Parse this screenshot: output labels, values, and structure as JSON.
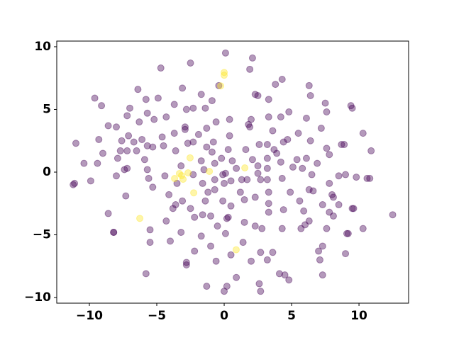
{
  "chart_data": {
    "type": "scatter",
    "xlim": [
      -12.42,
      13.68
    ],
    "ylim": [
      -10.45,
      10.45
    ],
    "xticks": [
      {
        "value": -10,
        "label": "−10"
      },
      {
        "value": -5,
        "label": "−5"
      },
      0,
      5,
      10
    ],
    "yticks": [
      {
        "value": -10,
        "label": "−10"
      },
      {
        "value": -5,
        "label": "−5"
      },
      0,
      5,
      10
    ],
    "grid": false,
    "series": [
      {
        "color": "#440154",
        "x": [
          0.1,
          2.1,
          -2.5,
          -4.7,
          1.9,
          4.3,
          3.8,
          6.3,
          -0.4,
          -6.4,
          -3.1,
          2.3,
          2.5,
          6.4,
          -1.7,
          -9.6,
          -4.9,
          -5.8,
          3.3,
          -0.9,
          -9.1,
          7.5,
          -3.7,
          9.4,
          9.5,
          -7.0,
          -2.8,
          -2.3,
          -1.4,
          -5.7,
          -7.2,
          4.8,
          7.6,
          3.3,
          4.2,
          -5.2,
          -4.3,
          0.4,
          2.0,
          6.1,
          -0.6,
          1.8,
          1.9,
          -8.6,
          -8.0,
          -6.3,
          -2.9,
          -2.9,
          -1.3,
          3.6,
          -3.7,
          -7.1,
          -4.6,
          5.5,
          7.2,
          10.3,
          -1.9,
          0.4,
          -9.3,
          -6.1,
          -7.6,
          -6.7,
          -2.7,
          -2.3,
          -0.8,
          4.4,
          4.7,
          6.4,
          8.7,
          8.9,
          -11.0,
          2.6,
          3.2,
          -5.7,
          -4.5,
          -1.3,
          1.6,
          -5.3,
          -7.2,
          7.6,
          10.9,
          -9.0,
          -7.7,
          -6.5,
          -3.6,
          -0.9,
          0.3,
          3.7,
          3.9,
          7.8,
          -5.9,
          -0.2,
          0.6,
          3.2,
          2.1,
          5.4,
          6.1,
          4.2,
          -10.4,
          -9.4,
          -7.9,
          -1.7,
          -0.7,
          2.5,
          6.9,
          -7.2,
          -7.4,
          -3.2,
          0.9,
          3.2,
          5.1,
          5.8,
          -5.7,
          -1.5,
          0.1,
          -0.1,
          2.5,
          6.5,
          8.5,
          9.0,
          9.8,
          10.6,
          10.8,
          -8.0,
          -4.4,
          -2.3,
          1.7,
          2.7,
          3.2,
          4.3,
          -9.9,
          -5.6,
          1.3,
          -0.7,
          0.5,
          0,
          -3.5,
          -1.6,
          -11.2,
          -11.1,
          7.8,
          -5.3,
          6.3,
          6.6,
          8.0,
          8.1,
          -1.2,
          -7.3,
          -4.1,
          -0.7,
          1.2,
          2.3,
          3.3,
          4.9,
          -3.1,
          -1.4,
          -0.1,
          1.5,
          -3.6,
          5.6,
          7.3,
          8.5,
          0.5,
          3.3,
          -3.8,
          -2.5,
          9.5,
          9.6,
          4.4,
          5.9,
          -8.6,
          7.8,
          -1.6,
          -1.0,
          0.3,
          0.2,
          3.3,
          8.1,
          12.5,
          -2.2,
          -4.3,
          1.5,
          6.3,
          2.3,
          -0.5,
          6.0,
          5.7,
          4.3,
          2.8,
          7.6,
          10.3,
          -8.2,
          -8.2,
          9.1,
          9.2,
          -5.5,
          -3.2,
          -1.7,
          0.1,
          -4.0,
          -5.5,
          1.4,
          -1.0,
          7.3,
          -2.2,
          2.7,
          7.0,
          3.6,
          9.0,
          0.5,
          3.2,
          7.1,
          -2.8,
          -2.8,
          -0.6,
          2.0,
          -5.8,
          4.1,
          4.5,
          7.3,
          0.9,
          4.8,
          2.6,
          -1.3,
          0.2,
          0,
          2.7
        ],
        "values": [
          9.5,
          9.1,
          8.7,
          8.3,
          8.2,
          7.4,
          7.0,
          6.9,
          6.9,
          6.6,
          6.7,
          6.2,
          6.1,
          6.1,
          6.2,
          5.9,
          5.9,
          5.8,
          5.8,
          5.7,
          5.3,
          5.5,
          5.4,
          5.3,
          5.1,
          5.1,
          5.0,
          5.1,
          5.1,
          4.7,
          4.5,
          4.8,
          4.8,
          4.4,
          4.4,
          4.2,
          4.4,
          4.2,
          4.2,
          4.3,
          4.0,
          3.8,
          3.6,
          3.7,
          3.6,
          4.0,
          3.6,
          3.4,
          3.5,
          3.3,
          3.1,
          2.9,
          2.8,
          3.1,
          3.5,
          3.1,
          3.0,
          2.9,
          2.6,
          2.6,
          2.5,
          2.4,
          2.3,
          2.4,
          2.4,
          2.4,
          2.6,
          2.5,
          2.2,
          2.2,
          2.3,
          2.2,
          2.2,
          2.1,
          2.1,
          2.0,
          1.8,
          2.0,
          1.7,
          1.9,
          1.7,
          1.5,
          1.7,
          1.7,
          1.7,
          1.6,
          1.8,
          1.8,
          1.5,
          1.4,
          1.0,
          1.1,
          0.9,
          1.1,
          1.0,
          1.0,
          1.1,
          0.8,
          0.7,
          0.7,
          1.1,
          0.9,
          0.7,
          0.5,
          0.7,
          0.3,
          0.2,
          0.5,
          0.3,
          0.3,
          0.4,
          0.3,
          0.2,
          0.2,
          -0.1,
          -0.2,
          -0.1,
          -0.2,
          -0.3,
          -0.2,
          -0.4,
          -0.5,
          -0.5,
          -0.3,
          -0.3,
          -0.2,
          -0.6,
          -0.6,
          -0.6,
          -0.5,
          -0.7,
          -0.5,
          -0.6,
          -0.6,
          -0.7,
          -0.9,
          -0.9,
          -0.9,
          -1.0,
          -0.9,
          -0.9,
          -1.2,
          -1.4,
          -1.5,
          -1.8,
          -2.0,
          -1.6,
          -1.9,
          -1.8,
          -1.4,
          -1.6,
          -2.0,
          -1.6,
          -1.6,
          -2.3,
          -2.3,
          -2.3,
          -2.2,
          -2.6,
          -2.3,
          -2.6,
          -2.6,
          -2.7,
          -2.5,
          -2.9,
          -2.9,
          -2.9,
          -2.9,
          -3.0,
          -3.1,
          -3.3,
          -3.2,
          -3.4,
          -3.5,
          -3.6,
          -3.7,
          -3.2,
          -3.5,
          -3.4,
          -3.6,
          -3.9,
          -4.0,
          -3.9,
          -4.3,
          -4.3,
          -4.2,
          -4.5,
          -4.5,
          -4.5,
          -4.5,
          -4.5,
          -4.8,
          -4.8,
          -4.9,
          -4.9,
          -4.6,
          -4.8,
          -5.1,
          -4.9,
          -5.5,
          -5.6,
          -5.6,
          -5.9,
          -5.9,
          -6.3,
          -6.4,
          -6.3,
          -6.4,
          -6.5,
          -6.6,
          -7.0,
          -7.0,
          -7.2,
          -7.4,
          -7.1,
          -7.1,
          -8.1,
          -8.1,
          -8.2,
          -8.2,
          -8.4,
          -8.6,
          -8.9,
          -9.1,
          -9.1,
          -9.5,
          -9.5
        ]
      },
      {
        "color": "#fde725",
        "x": [
          0,
          0,
          -0.26,
          -2.53,
          -3.16,
          -3.32,
          -3.05,
          -3.68,
          -2.68,
          -1.1,
          1.53,
          -2.26,
          -6.26,
          0.89
        ],
        "values": [
          7.95,
          7.73,
          6.88,
          1.14,
          -0.28,
          -0.11,
          -0.57,
          -0.51,
          -0.06,
          0.06,
          0.34,
          -1.65,
          -3.69,
          -6.19
        ]
      }
    ]
  }
}
